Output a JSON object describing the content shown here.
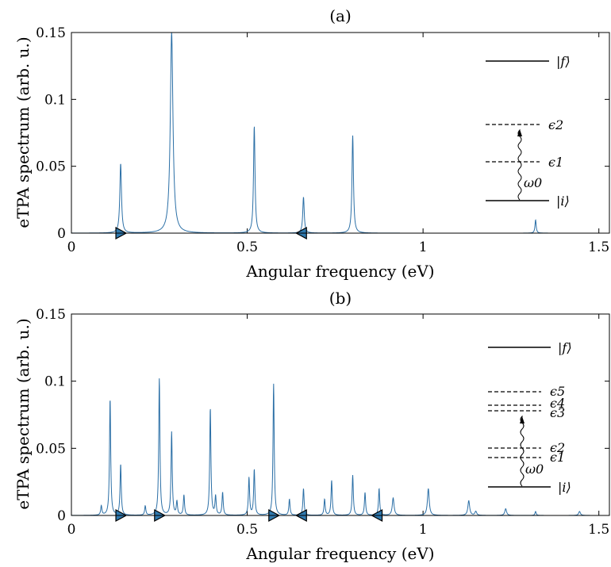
{
  "chart_data": [
    {
      "type": "line",
      "title": "(a)",
      "xlabel": "Angular frequency (eV)",
      "ylabel": "eTPA spectrum (arb. u.)",
      "xlim": [
        0,
        1.53
      ],
      "ylim": [
        0,
        0.15
      ],
      "xticks": [
        0,
        0.5,
        1,
        1.5
      ],
      "xtick_labels": [
        "0",
        "0.5",
        "1",
        "1.5"
      ],
      "yticks": [
        0,
        0.05,
        0.1,
        0.15
      ],
      "ytick_labels": [
        "0",
        "0.05",
        "0.1",
        "0.15"
      ],
      "grid": false,
      "series": [
        {
          "color": "#2b6fa6",
          "peaks": [
            {
              "x": 0.14,
              "y": 0.052,
              "w": 0.0028
            },
            {
              "x": 0.285,
              "y": 0.15,
              "w": 0.0045
            },
            {
              "x": 0.52,
              "y": 0.08,
              "w": 0.0025
            },
            {
              "x": 0.66,
              "y": 0.027,
              "w": 0.0025
            },
            {
              "x": 0.8,
              "y": 0.073,
              "w": 0.0025
            },
            {
              "x": 1.32,
              "y": 0.01,
              "w": 0.002
            }
          ]
        }
      ],
      "markers": [
        {
          "x": 0.14,
          "direction": "right"
        },
        {
          "x": 0.655,
          "direction": "left"
        }
      ],
      "inset": {
        "levels": [
          {
            "label": "|f⟩",
            "style": "solid"
          },
          {
            "label": "ϵ2",
            "style": "dashed"
          },
          {
            "label": "ϵ1",
            "style": "dashed"
          },
          {
            "label": "|i⟩",
            "style": "solid"
          }
        ],
        "photon_label": "ω0"
      }
    },
    {
      "type": "line",
      "title": "(b)",
      "xlabel": "Angular frequency (eV)",
      "ylabel": "eTPA spectrum (arb. u.)",
      "xlim": [
        0,
        1.53
      ],
      "ylim": [
        0,
        0.15
      ],
      "xticks": [
        0,
        0.5,
        1,
        1.5
      ],
      "xtick_labels": [
        "0",
        "0.5",
        "1",
        "1.5"
      ],
      "yticks": [
        0,
        0.05,
        0.1,
        0.15
      ],
      "ytick_labels": [
        "0",
        "0.05",
        "0.1",
        "0.15"
      ],
      "grid": false,
      "series": [
        {
          "color": "#2b6fa6",
          "peaks": [
            {
              "x": 0.085,
              "y": 0.007,
              "w": 0.002
            },
            {
              "x": 0.11,
              "y": 0.087,
              "w": 0.002
            },
            {
              "x": 0.14,
              "y": 0.038,
              "w": 0.002
            },
            {
              "x": 0.21,
              "y": 0.007,
              "w": 0.002
            },
            {
              "x": 0.25,
              "y": 0.102,
              "w": 0.002
            },
            {
              "x": 0.285,
              "y": 0.062,
              "w": 0.002
            },
            {
              "x": 0.3,
              "y": 0.01,
              "w": 0.002
            },
            {
              "x": 0.32,
              "y": 0.015,
              "w": 0.002
            },
            {
              "x": 0.395,
              "y": 0.08,
              "w": 0.002
            },
            {
              "x": 0.41,
              "y": 0.014,
              "w": 0.002
            },
            {
              "x": 0.43,
              "y": 0.017,
              "w": 0.002
            },
            {
              "x": 0.505,
              "y": 0.028,
              "w": 0.002
            },
            {
              "x": 0.52,
              "y": 0.034,
              "w": 0.002
            },
            {
              "x": 0.575,
              "y": 0.098,
              "w": 0.002
            },
            {
              "x": 0.62,
              "y": 0.012,
              "w": 0.002
            },
            {
              "x": 0.66,
              "y": 0.02,
              "w": 0.002
            },
            {
              "x": 0.72,
              "y": 0.012,
              "w": 0.002
            },
            {
              "x": 0.74,
              "y": 0.026,
              "w": 0.002
            },
            {
              "x": 0.8,
              "y": 0.03,
              "w": 0.002
            },
            {
              "x": 0.835,
              "y": 0.017,
              "w": 0.002
            },
            {
              "x": 0.875,
              "y": 0.02,
              "w": 0.002
            },
            {
              "x": 0.915,
              "y": 0.013,
              "w": 0.003
            },
            {
              "x": 1.015,
              "y": 0.02,
              "w": 0.003
            },
            {
              "x": 1.13,
              "y": 0.011,
              "w": 0.003
            },
            {
              "x": 1.15,
              "y": 0.003,
              "w": 0.003
            },
            {
              "x": 1.235,
              "y": 0.005,
              "w": 0.003
            },
            {
              "x": 1.32,
              "y": 0.003,
              "w": 0.002
            },
            {
              "x": 1.445,
              "y": 0.003,
              "w": 0.003
            }
          ]
        }
      ],
      "markers": [
        {
          "x": 0.14,
          "direction": "right"
        },
        {
          "x": 0.25,
          "direction": "right"
        },
        {
          "x": 0.575,
          "direction": "right"
        },
        {
          "x": 0.655,
          "direction": "left"
        },
        {
          "x": 0.87,
          "direction": "left"
        }
      ],
      "inset": {
        "levels": [
          {
            "label": "|f⟩",
            "style": "solid"
          },
          {
            "label": "ϵ5",
            "style": "dashed"
          },
          {
            "label": "ϵ4",
            "style": "dashed"
          },
          {
            "label": "ϵ3",
            "style": "dashed"
          },
          {
            "label": "ϵ2",
            "style": "dashed"
          },
          {
            "label": "ϵ1",
            "style": "dashed"
          },
          {
            "label": "|i⟩",
            "style": "solid"
          }
        ],
        "photon_label": "ω0"
      }
    }
  ]
}
